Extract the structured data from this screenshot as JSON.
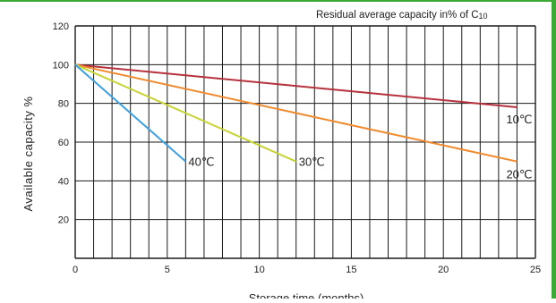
{
  "chart_data": {
    "type": "line",
    "title": "Residual average capacity in% of C",
    "title_subscript": "10",
    "xlabel": "Storage time (months)",
    "ylabel": "Available capacity %",
    "xlim": [
      0,
      25
    ],
    "ylim": [
      0,
      120
    ],
    "x_ticks": [
      0,
      5,
      10,
      15,
      20,
      25
    ],
    "y_ticks": [
      20,
      40,
      60,
      80,
      100,
      120
    ],
    "grid": true,
    "series": [
      {
        "name": "10℃",
        "color": "#b5323c",
        "x": [
          0,
          24
        ],
        "y": [
          100,
          78
        ]
      },
      {
        "name": "20℃",
        "color": "#f08a2c",
        "x": [
          0,
          24
        ],
        "y": [
          100,
          50
        ]
      },
      {
        "name": "30℃",
        "color": "#c8d335",
        "x": [
          0,
          12
        ],
        "y": [
          100,
          50
        ]
      },
      {
        "name": "40℃",
        "color": "#3b9fe0",
        "x": [
          0,
          6
        ],
        "y": [
          100,
          50
        ]
      }
    ]
  },
  "colors": {
    "frame_accent": "#3aaa35",
    "grid": "#1a1a1a"
  }
}
